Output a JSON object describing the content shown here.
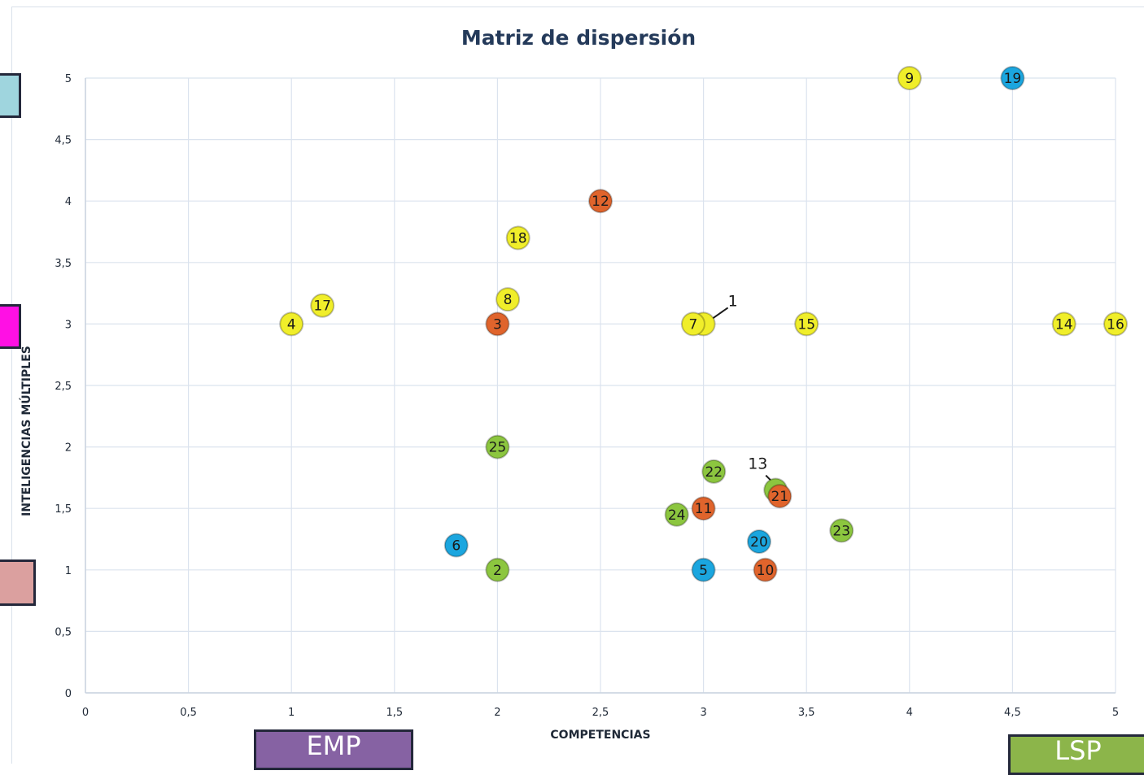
{
  "chart_data": {
    "type": "scatter",
    "title": "Matriz de dispersión",
    "xlabel": "COMPETENCIAS",
    "ylabel": "INTELIGENCIAS MÚLTIPLES",
    "xlim": [
      0,
      5
    ],
    "ylim": [
      0,
      5
    ],
    "x_ticks": [
      "0",
      "0,5",
      "1",
      "1,5",
      "2",
      "2,5",
      "3",
      "3,5",
      "4",
      "4,5",
      "5"
    ],
    "y_ticks": [
      "0",
      "0,5",
      "1",
      "1,5",
      "2",
      "2,5",
      "3",
      "3,5",
      "4",
      "4,5",
      "5"
    ],
    "grid": true,
    "color_groups": {
      "yellow": "#f0ee2a",
      "orange": "#e0642c",
      "green": "#8cc63f",
      "blue": "#1ba6df"
    },
    "points": [
      {
        "label": "1",
        "x": 3.0,
        "y": 3.0,
        "color": "yellow",
        "callout": true
      },
      {
        "label": "2",
        "x": 2.0,
        "y": 1.0,
        "color": "green"
      },
      {
        "label": "3",
        "x": 2.0,
        "y": 3.0,
        "color": "orange"
      },
      {
        "label": "4",
        "x": 1.0,
        "y": 3.0,
        "color": "yellow"
      },
      {
        "label": "5",
        "x": 3.0,
        "y": 1.0,
        "color": "blue"
      },
      {
        "label": "6",
        "x": 1.8,
        "y": 1.2,
        "color": "blue"
      },
      {
        "label": "7",
        "x": 2.95,
        "y": 3.0,
        "color": "yellow"
      },
      {
        "label": "8",
        "x": 2.05,
        "y": 3.2,
        "color": "yellow"
      },
      {
        "label": "9",
        "x": 4.0,
        "y": 5.0,
        "color": "yellow"
      },
      {
        "label": "10",
        "x": 3.3,
        "y": 1.0,
        "color": "orange"
      },
      {
        "label": "11",
        "x": 3.0,
        "y": 1.5,
        "color": "orange"
      },
      {
        "label": "12",
        "x": 2.5,
        "y": 4.0,
        "color": "orange"
      },
      {
        "label": "13",
        "x": 3.35,
        "y": 1.65,
        "color": "green",
        "callout": true
      },
      {
        "label": "14",
        "x": 4.75,
        "y": 3.0,
        "color": "yellow"
      },
      {
        "label": "15",
        "x": 3.5,
        "y": 3.0,
        "color": "yellow"
      },
      {
        "label": "16",
        "x": 5.0,
        "y": 3.0,
        "color": "yellow"
      },
      {
        "label": "17",
        "x": 1.15,
        "y": 3.15,
        "color": "yellow"
      },
      {
        "label": "18",
        "x": 2.1,
        "y": 3.7,
        "color": "yellow"
      },
      {
        "label": "19",
        "x": 4.5,
        "y": 5.0,
        "color": "blue"
      },
      {
        "label": "20",
        "x": 3.27,
        "y": 1.23,
        "color": "blue"
      },
      {
        "label": "21",
        "x": 3.37,
        "y": 1.6,
        "color": "orange"
      },
      {
        "label": "22",
        "x": 3.05,
        "y": 1.8,
        "color": "green"
      },
      {
        "label": "23",
        "x": 3.67,
        "y": 1.32,
        "color": "green"
      },
      {
        "label": "24",
        "x": 2.87,
        "y": 1.45,
        "color": "green"
      },
      {
        "label": "25",
        "x": 2.0,
        "y": 2.0,
        "color": "green"
      }
    ]
  },
  "overlays": {
    "swatches": [
      {
        "name": "cyan",
        "color": "#9fd5de"
      },
      {
        "name": "magenta",
        "color": "#ff10e4"
      },
      {
        "name": "rose",
        "color": "#dba09f"
      }
    ],
    "tags": [
      {
        "text": "EMP",
        "color": "#8662a3"
      },
      {
        "text": "LSP",
        "color": "#8cb54a"
      }
    ]
  }
}
